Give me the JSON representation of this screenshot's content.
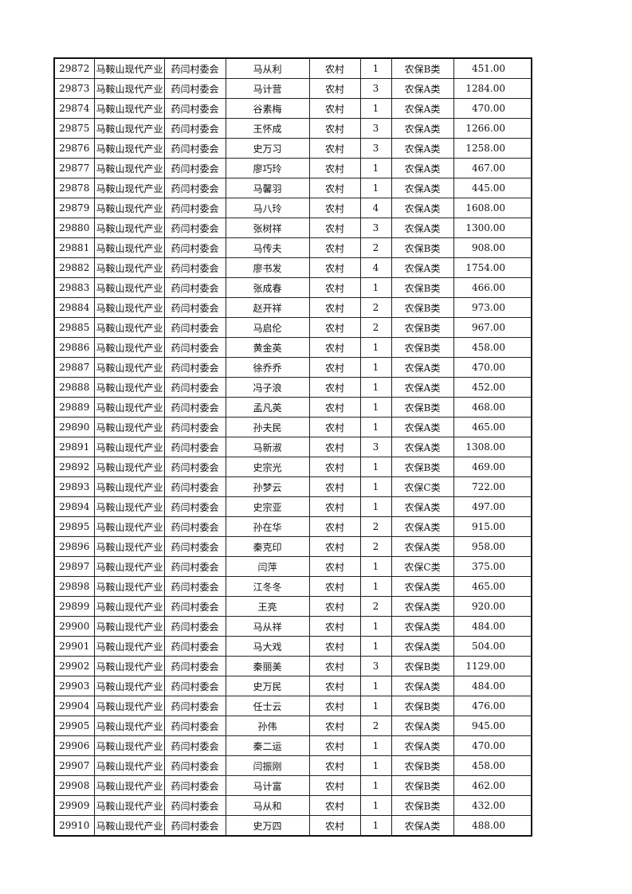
{
  "columns_fixed": {
    "unit": "马鞍山现代产业",
    "committee": "药闫村委会",
    "area": "农村"
  },
  "rows": [
    [
      "29872",
      "马从利",
      "1",
      "农保B类",
      "451.00"
    ],
    [
      "29873",
      "马计营",
      "3",
      "农保A类",
      "1284.00"
    ],
    [
      "29874",
      "谷素梅",
      "1",
      "农保A类",
      "470.00"
    ],
    [
      "29875",
      "王怀成",
      "3",
      "农保A类",
      "1266.00"
    ],
    [
      "29876",
      "史万习",
      "3",
      "农保A类",
      "1258.00"
    ],
    [
      "29877",
      "廖巧玲",
      "1",
      "农保A类",
      "467.00"
    ],
    [
      "29878",
      "马馨羽",
      "1",
      "农保A类",
      "445.00"
    ],
    [
      "29879",
      "马八玲",
      "4",
      "农保A类",
      "1608.00"
    ],
    [
      "29880",
      "张树祥",
      "3",
      "农保A类",
      "1300.00"
    ],
    [
      "29881",
      "马传夫",
      "2",
      "农保B类",
      "908.00"
    ],
    [
      "29882",
      "廖书发",
      "4",
      "农保A类",
      "1754.00"
    ],
    [
      "29883",
      "张成春",
      "1",
      "农保B类",
      "466.00"
    ],
    [
      "29884",
      "赵开祥",
      "2",
      "农保B类",
      "973.00"
    ],
    [
      "29885",
      "马启伦",
      "2",
      "农保B类",
      "967.00"
    ],
    [
      "29886",
      "黄金英",
      "1",
      "农保B类",
      "458.00"
    ],
    [
      "29887",
      "徐乔乔",
      "1",
      "农保A类",
      "470.00"
    ],
    [
      "29888",
      "冯子浪",
      "1",
      "农保A类",
      "452.00"
    ],
    [
      "29889",
      "孟凡英",
      "1",
      "农保B类",
      "468.00"
    ],
    [
      "29890",
      "孙夫民",
      "1",
      "农保A类",
      "465.00"
    ],
    [
      "29891",
      "马新淑",
      "3",
      "农保A类",
      "1308.00"
    ],
    [
      "29892",
      "史宗光",
      "1",
      "农保B类",
      "469.00"
    ],
    [
      "29893",
      "孙梦云",
      "1",
      "农保C类",
      "722.00"
    ],
    [
      "29894",
      "史宗亚",
      "1",
      "农保A类",
      "497.00"
    ],
    [
      "29895",
      "孙在华",
      "2",
      "农保A类",
      "915.00"
    ],
    [
      "29896",
      "秦克印",
      "2",
      "农保A类",
      "958.00"
    ],
    [
      "29897",
      "闫萍",
      "1",
      "农保C类",
      "375.00"
    ],
    [
      "29898",
      "江冬冬",
      "1",
      "农保A类",
      "465.00"
    ],
    [
      "29899",
      "王亮",
      "2",
      "农保A类",
      "920.00"
    ],
    [
      "29900",
      "马从祥",
      "1",
      "农保A类",
      "484.00"
    ],
    [
      "29901",
      "马大戏",
      "1",
      "农保A类",
      "504.00"
    ],
    [
      "29902",
      "秦丽美",
      "3",
      "农保B类",
      "1129.00"
    ],
    [
      "29903",
      "史万民",
      "1",
      "农保A类",
      "484.00"
    ],
    [
      "29904",
      "任士云",
      "1",
      "农保B类",
      "476.00"
    ],
    [
      "29905",
      "孙伟",
      "2",
      "农保A类",
      "945.00"
    ],
    [
      "29906",
      "秦二运",
      "1",
      "农保A类",
      "470.00"
    ],
    [
      "29907",
      "闫振刚",
      "1",
      "农保B类",
      "458.00"
    ],
    [
      "29908",
      "马计富",
      "1",
      "农保B类",
      "462.00"
    ],
    [
      "29909",
      "马从和",
      "1",
      "农保B类",
      "432.00"
    ],
    [
      "29910",
      "史万四",
      "1",
      "农保A类",
      "488.00"
    ]
  ]
}
